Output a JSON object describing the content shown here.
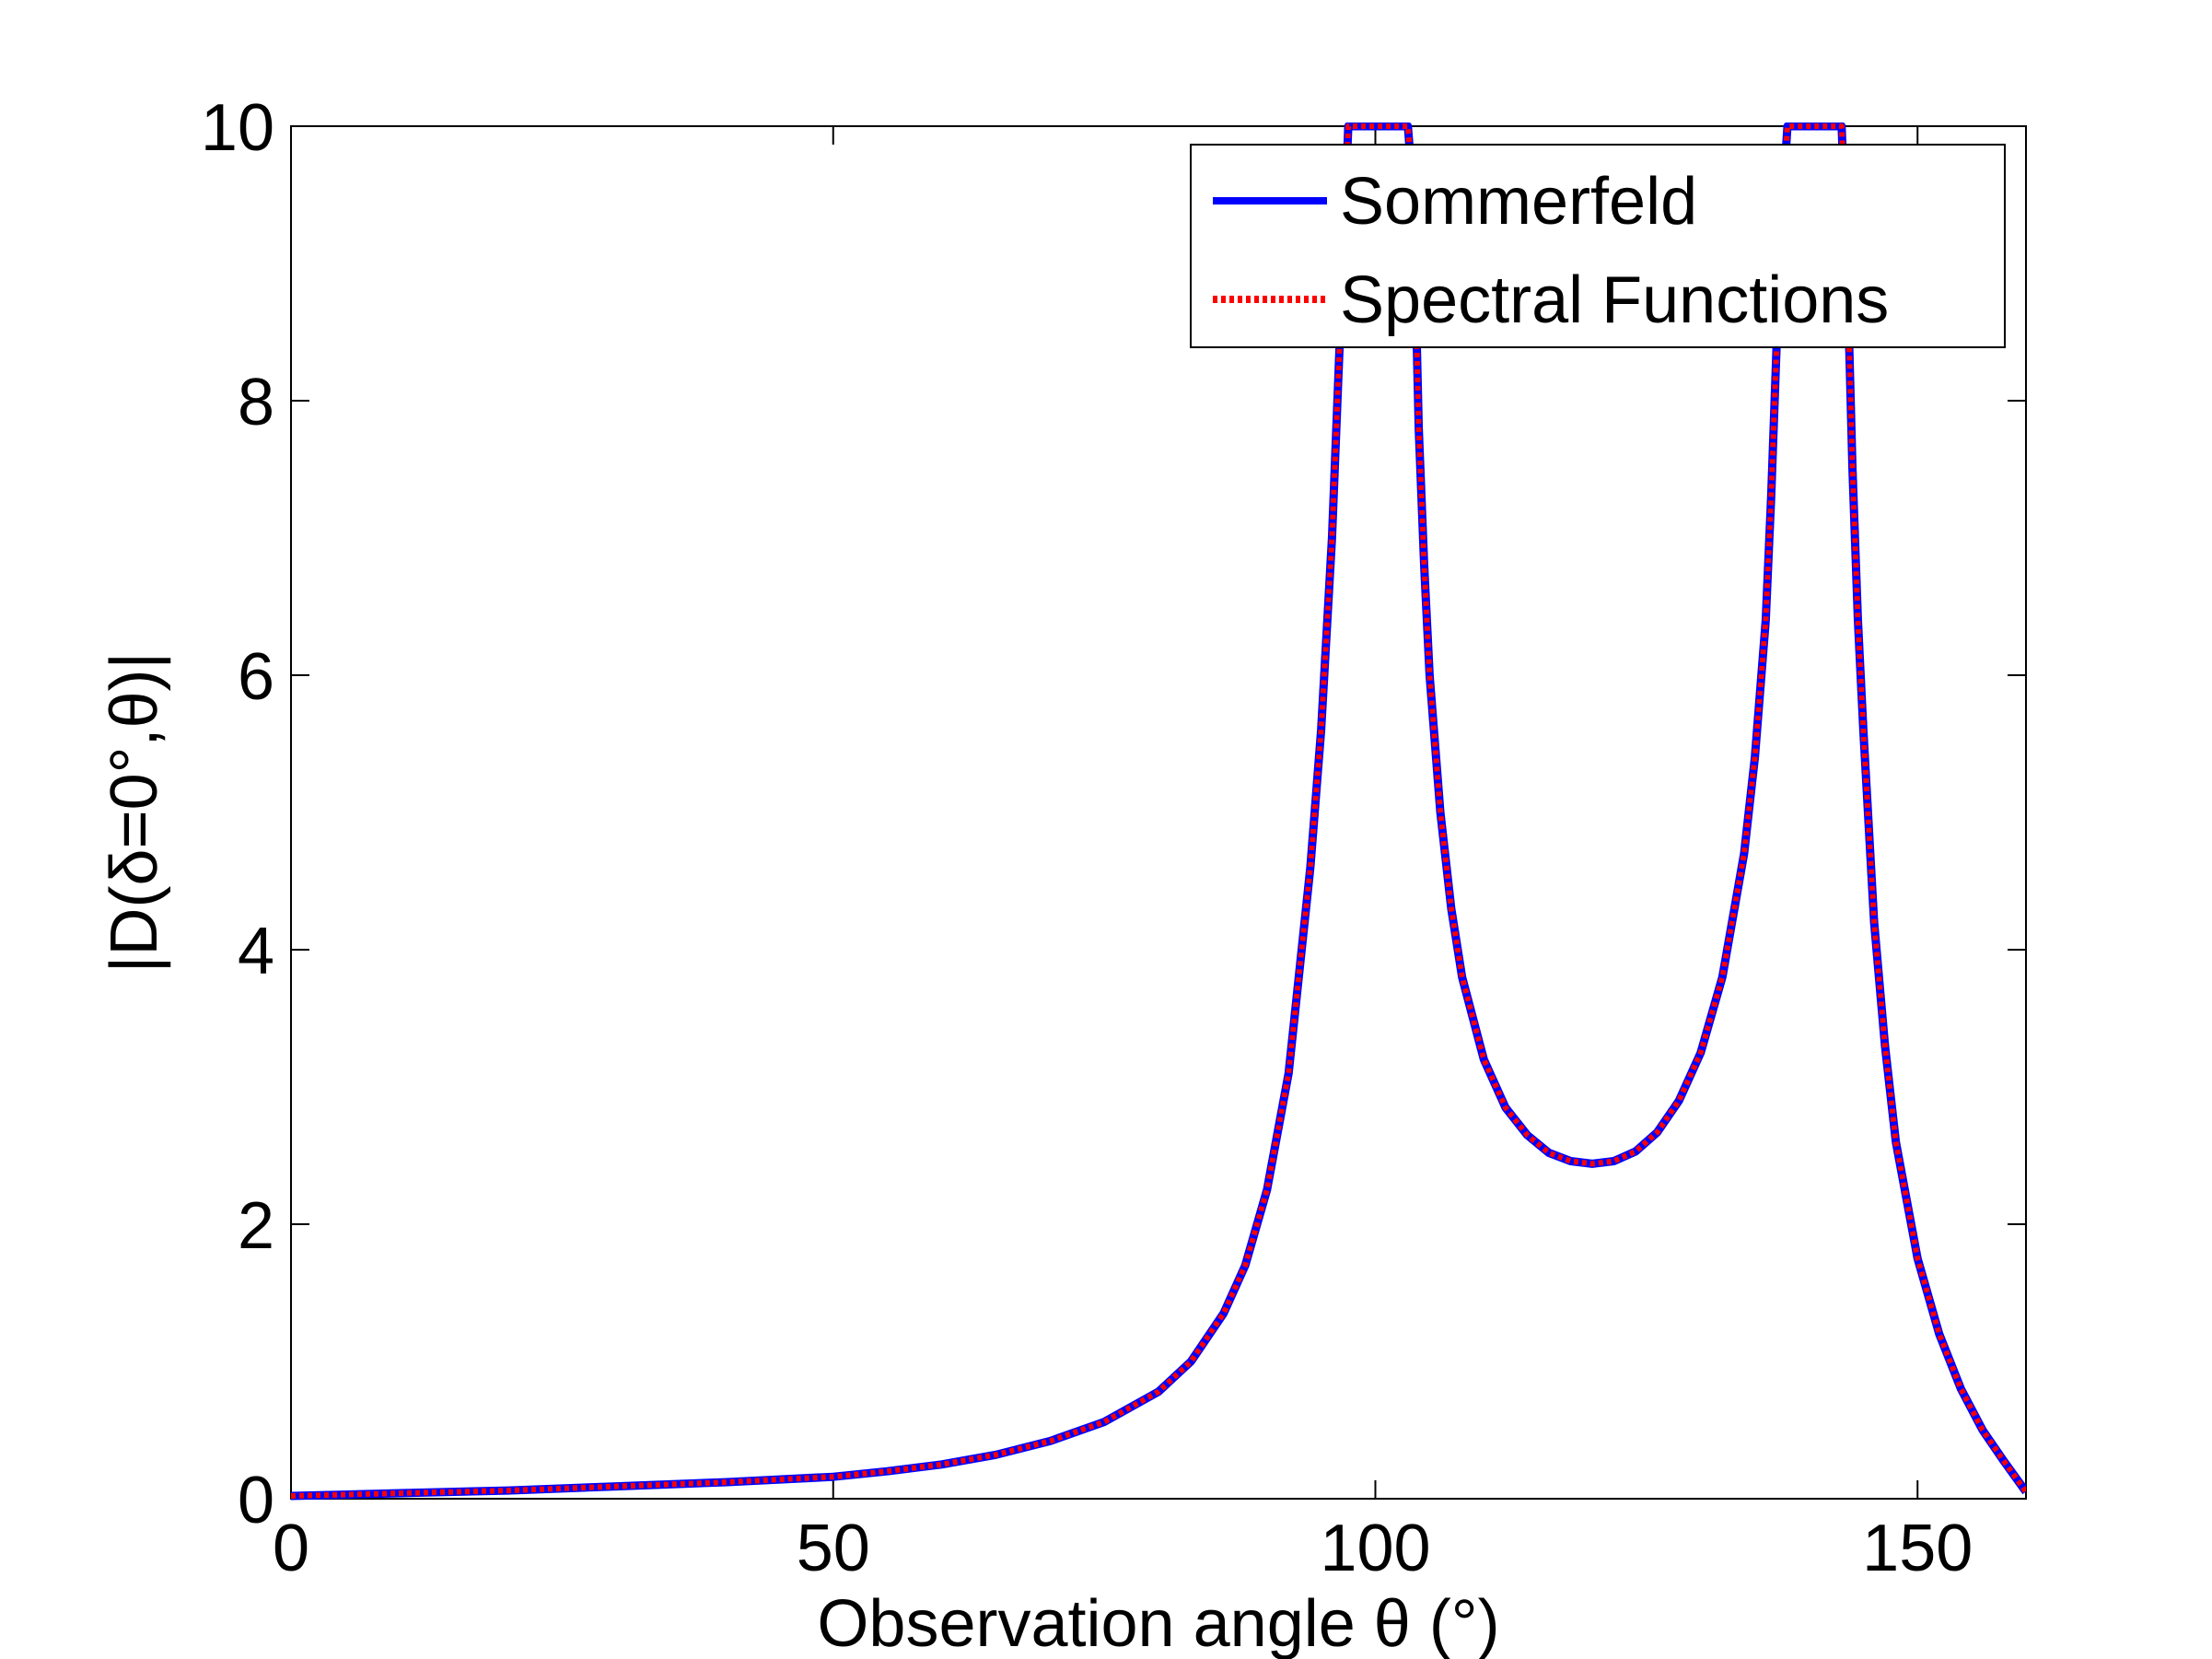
{
  "chart_data": {
    "type": "line",
    "title": "",
    "xlabel": "Observation angle θ (°)",
    "ylabel": "|D(δ=0°,θ)|",
    "xlim": [
      0,
      160
    ],
    "ylim": [
      0,
      10
    ],
    "xticks": [
      0,
      50,
      100,
      150
    ],
    "yticks": [
      0,
      2,
      4,
      6,
      8,
      10
    ],
    "xtick_labels": [
      "0",
      "50",
      "100",
      "150"
    ],
    "ytick_labels": [
      "0",
      "2",
      "4",
      "6",
      "8",
      "10"
    ],
    "grid": false,
    "legend_position": "top-right",
    "x": [
      0,
      10,
      20,
      30,
      40,
      50,
      55,
      60,
      65,
      70,
      75,
      80,
      83,
      86,
      88,
      90,
      92,
      94,
      95,
      96,
      96.5,
      97,
      97.5,
      98,
      103,
      103.5,
      104,
      104.5,
      105,
      106,
      107,
      108,
      110,
      112,
      114,
      116,
      118,
      120,
      122,
      124,
      126,
      128,
      130,
      132,
      134,
      135,
      136,
      136.5,
      137,
      137.5,
      138,
      143,
      143.5,
      144,
      144.5,
      145,
      146,
      147,
      148,
      150,
      152,
      154,
      156,
      158,
      160
    ],
    "series": [
      {
        "name": "Sommerfeld",
        "color": "#0000ff",
        "style": "solid",
        "values": [
          0.02,
          0.04,
          0.06,
          0.09,
          0.12,
          0.16,
          0.2,
          0.25,
          0.32,
          0.42,
          0.56,
          0.78,
          1.0,
          1.35,
          1.7,
          2.25,
          3.1,
          4.6,
          5.6,
          7.0,
          8.0,
          9.0,
          10.0,
          10.0,
          10.0,
          9.5,
          7.8,
          6.8,
          6.0,
          5.0,
          4.3,
          3.8,
          3.2,
          2.85,
          2.65,
          2.52,
          2.46,
          2.44,
          2.46,
          2.53,
          2.67,
          2.9,
          3.25,
          3.8,
          4.7,
          5.4,
          6.4,
          7.3,
          8.4,
          9.4,
          10.0,
          10.0,
          9.0,
          7.5,
          6.4,
          5.6,
          4.2,
          3.3,
          2.6,
          1.75,
          1.2,
          0.8,
          0.5,
          0.27,
          0.05
        ]
      },
      {
        "name": "Spectral Functions",
        "color": "#ff0000",
        "style": "dotted",
        "values": [
          0.02,
          0.04,
          0.06,
          0.09,
          0.12,
          0.16,
          0.2,
          0.25,
          0.32,
          0.42,
          0.56,
          0.78,
          1.0,
          1.35,
          1.7,
          2.25,
          3.1,
          4.6,
          5.6,
          7.0,
          8.0,
          9.0,
          10.0,
          10.0,
          10.0,
          9.5,
          7.8,
          6.8,
          6.0,
          5.0,
          4.3,
          3.8,
          3.2,
          2.85,
          2.65,
          2.52,
          2.46,
          2.44,
          2.46,
          2.53,
          2.67,
          2.9,
          3.25,
          3.8,
          4.7,
          5.4,
          6.4,
          7.3,
          8.4,
          9.4,
          10.0,
          10.0,
          9.0,
          7.5,
          6.4,
          5.6,
          4.2,
          3.3,
          2.6,
          1.75,
          1.2,
          0.8,
          0.5,
          0.27,
          0.05
        ]
      }
    ]
  }
}
